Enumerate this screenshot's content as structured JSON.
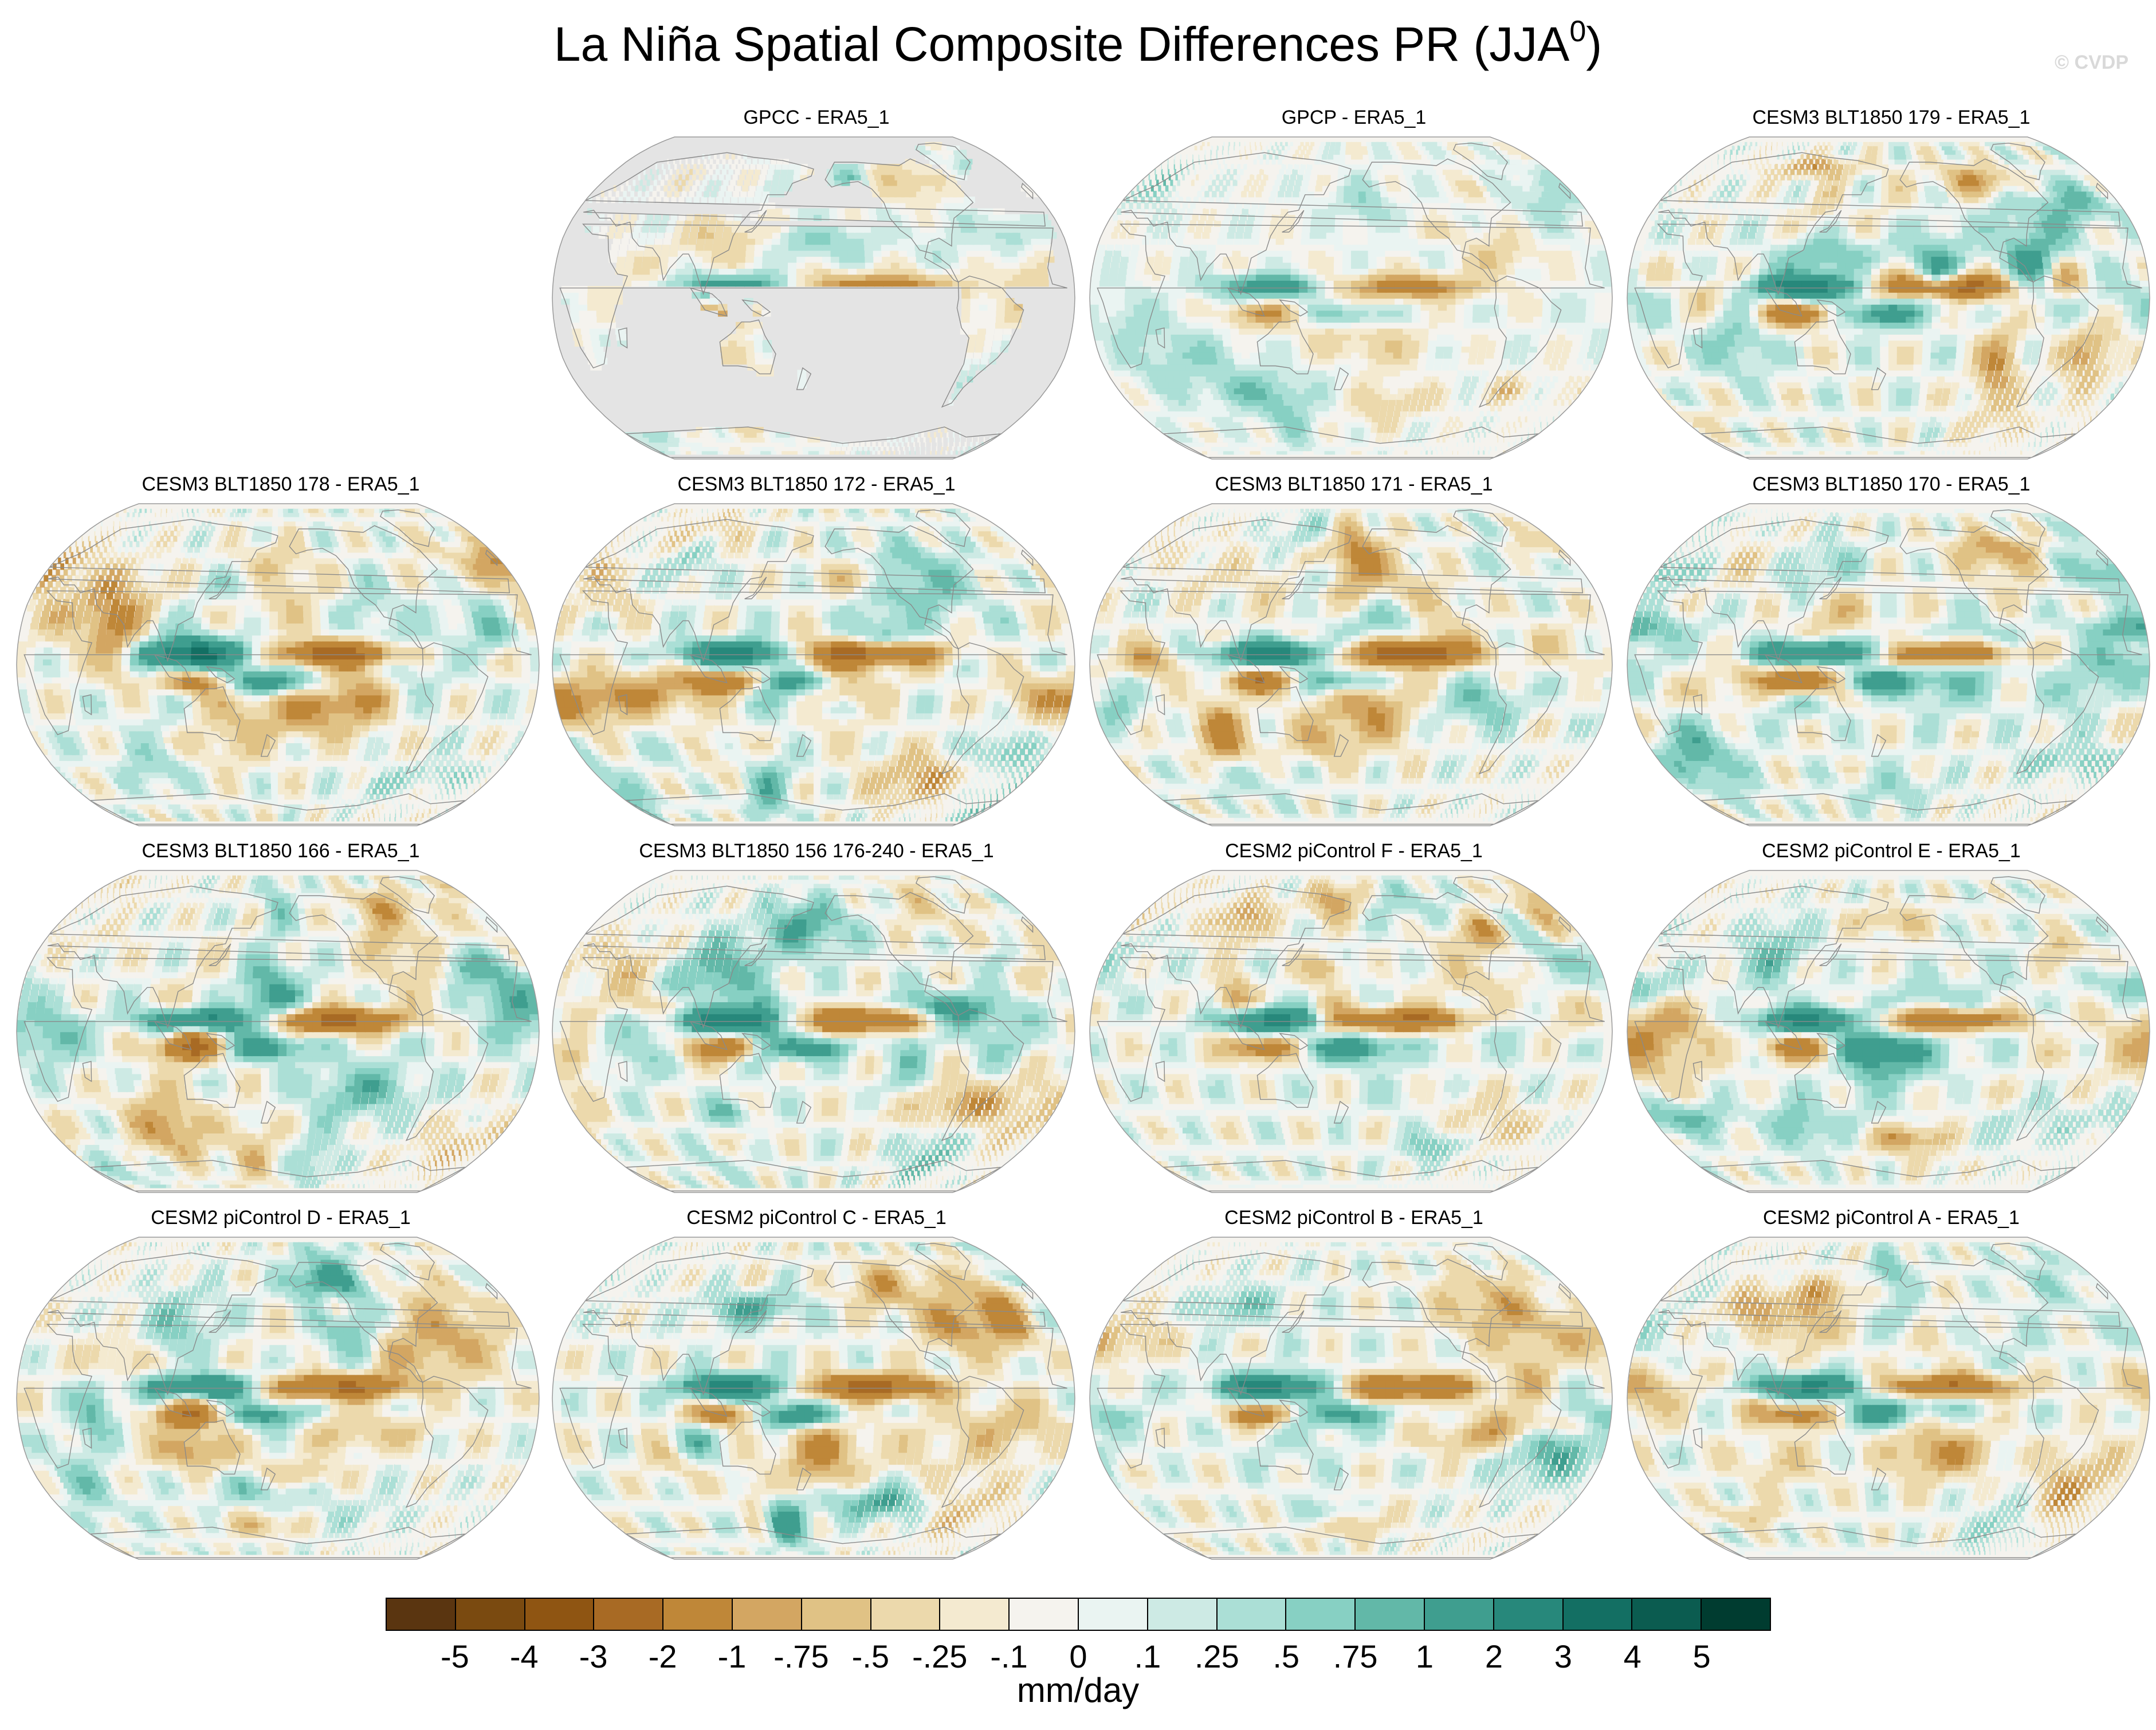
{
  "title": "La Niña Spatial Composite Differences PR (JJA",
  "title_superscript": "0",
  "title_close": ")",
  "watermark": "© CVDP",
  "map": {
    "projection": "Robinson",
    "central_longitude": 180,
    "missing_color": "#e4e4e4"
  },
  "panels": [
    {
      "title": "GPCC - ERA5_1",
      "land_only": true,
      "seed": 3
    },
    {
      "title": "GPCP - ERA5_1",
      "land_only": false,
      "seed": 7,
      "intensity": 0.6
    },
    {
      "title": "CESM3 BLT1850 179 - ERA5_1",
      "land_only": false,
      "seed": 11,
      "intensity": 1.0
    },
    {
      "title": "CESM3 BLT1850 178 - ERA5_1",
      "land_only": false,
      "seed": 13,
      "intensity": 1.0
    },
    {
      "title": "CESM3 BLT1850 172 - ERA5_1",
      "land_only": false,
      "seed": 17,
      "intensity": 1.0
    },
    {
      "title": "CESM3 BLT1850 171 - ERA5_1",
      "land_only": false,
      "seed": 19,
      "intensity": 1.0
    },
    {
      "title": "CESM3 BLT1850 170 - ERA5_1",
      "land_only": false,
      "seed": 23,
      "intensity": 1.0
    },
    {
      "title": "CESM3 BLT1850 166 - ERA5_1",
      "land_only": false,
      "seed": 29,
      "intensity": 1.0
    },
    {
      "title": "CESM3 BLT1850 156 176-240 - ERA5_1",
      "land_only": false,
      "seed": 31,
      "intensity": 1.0
    },
    {
      "title": "CESM2 piControl F - ERA5_1",
      "land_only": false,
      "seed": 37,
      "intensity": 0.9
    },
    {
      "title": "CESM2 piControl E - ERA5_1",
      "land_only": false,
      "seed": 41,
      "intensity": 0.9
    },
    {
      "title": "CESM2 piControl D - ERA5_1",
      "land_only": false,
      "seed": 43,
      "intensity": 0.9
    },
    {
      "title": "CESM2 piControl C - ERA5_1",
      "land_only": false,
      "seed": 47,
      "intensity": 1.0
    },
    {
      "title": "CESM2 piControl B - ERA5_1",
      "land_only": false,
      "seed": 53,
      "intensity": 0.9
    },
    {
      "title": "CESM2 piControl A - ERA5_1",
      "land_only": false,
      "seed": 59,
      "intensity": 0.9
    }
  ],
  "colorbar": {
    "colors": [
      "#5a3510",
      "#7a4a10",
      "#8f5512",
      "#a86a24",
      "#bf8738",
      "#d3a662",
      "#e0c285",
      "#ecd9ac",
      "#f4ead0",
      "#f5f3ee",
      "#eaf4f2",
      "#cdeae4",
      "#abdfd6",
      "#87d0c3",
      "#62b8a8",
      "#3f9e8f",
      "#27887b",
      "#136f63",
      "#0b5c50",
      "#003c30"
    ],
    "tick_labels": [
      "-5",
      "-4",
      "-3",
      "-2",
      "-1",
      "-.75",
      "-.5",
      "-.25",
      "-.1",
      "0",
      ".1",
      ".25",
      ".5",
      ".75",
      "1",
      "2",
      "3",
      "4",
      "5"
    ],
    "units": "mm/day"
  }
}
